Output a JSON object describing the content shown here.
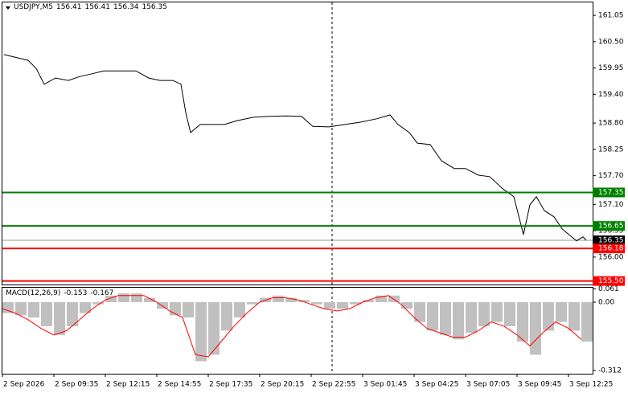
{
  "chart_data": [
    {
      "type": "line",
      "title": "USDJPY,M5",
      "ohlc": [
        156.41,
        156.41,
        156.34,
        156.35
      ],
      "xlim": [
        0,
        367
      ],
      "ylim": [
        155.41,
        161.32
      ],
      "yticks": [
        161.05,
        {
          "value": 160.5,
          "label": "160.50"
        },
        159.95,
        {
          "value": 159.4,
          "label": "159.40"
        },
        {
          "value": 158.8,
          "label": "158.80"
        },
        158.25,
        {
          "value": 157.7,
          "label": "157.70"
        },
        {
          "value": 157.1,
          "label": "157.10"
        },
        156.55,
        {
          "value": 156,
          "label": "156.00"
        }
      ],
      "series": [
        {
          "color": "#000000",
          "x": [
            1,
            16,
            21,
            26,
            33,
            41,
            48,
            56,
            63,
            73,
            83,
            91,
            98,
            106,
            111,
            114,
            117,
            123,
            131,
            138,
            146,
            156,
            166,
            176,
            186,
            193,
            203,
            213,
            223,
            233,
            241,
            246,
            253,
            258,
            266,
            273,
            281,
            288,
            296,
            303,
            311,
            318,
            324,
            328,
            332,
            337,
            343,
            348,
            353,
            357,
            361,
            363
          ],
          "values": [
            160.23,
            160.11,
            159.94,
            159.61,
            159.74,
            159.69,
            159.77,
            159.83,
            159.89,
            159.89,
            159.89,
            159.74,
            159.69,
            159.69,
            159.61,
            159.02,
            158.6,
            158.77,
            158.77,
            158.77,
            158.85,
            158.92,
            158.94,
            158.95,
            158.94,
            158.73,
            158.72,
            158.77,
            158.82,
            158.89,
            158.97,
            158.77,
            158.6,
            158.38,
            158.35,
            158.01,
            157.85,
            157.85,
            157.71,
            157.68,
            157.43,
            157.26,
            156.47,
            157.09,
            157.26,
            156.97,
            156.84,
            156.59,
            156.45,
            156.34,
            156.42,
            156.35
          ]
        }
      ],
      "levels": [
        {
          "value": 157.35,
          "label": "157.35",
          "color": "#008000"
        },
        {
          "value": 156.65,
          "label": "156.65",
          "color": "#008000"
        },
        {
          "value": 156.35,
          "label": "156.35",
          "color": "#000000"
        },
        {
          "value": 156.18,
          "label": "156.18",
          "color": "#ff0000"
        },
        {
          "value": 155.5,
          "label": "155.50",
          "color": "#ff0000"
        }
      ]
    },
    {
      "type": "macd",
      "title": "MACD(12,26,9)",
      "indicator_values": [
        -0.153,
        -0.167
      ],
      "xlim": [
        0,
        367
      ],
      "ylim": [
        -0.327,
        0.066
      ],
      "yticks": [
        0.061,
        {
          "value": 0,
          "label": "0.00"
        },
        -0.312
      ],
      "xticks": [
        {
          "value": 0,
          "label": "2 Sep 2026"
        },
        {
          "value": 32,
          "label": "2 Sep 09:35"
        },
        {
          "value": 64,
          "label": "2 Sep 12:15"
        },
        {
          "value": 96,
          "label": "2 Sep 14:55"
        },
        {
          "value": 128,
          "label": "2 Sep 17:35"
        },
        {
          "value": 160,
          "label": "2 Sep 20:15"
        },
        {
          "value": 192,
          "label": "2 Sep 22:55"
        },
        {
          "value": 224,
          "label": "3 Sep 01:45"
        },
        {
          "value": 256,
          "label": "3 Sep 04:25"
        },
        {
          "value": 288,
          "label": "3 Sep 07:05"
        },
        {
          "value": 320,
          "label": "3 Sep 09:45"
        },
        {
          "value": 352,
          "label": "3 Sep 12:25"
        }
      ],
      "series": [
        {
          "type": "bar",
          "color": "#c0c0c0",
          "x": [
            0,
            8,
            16,
            24,
            32,
            40,
            48,
            56,
            64,
            72,
            80,
            88,
            96,
            104,
            112,
            120,
            128,
            136,
            144,
            152,
            160,
            168,
            176,
            184,
            192,
            200,
            208,
            216,
            224,
            232,
            240,
            248,
            256,
            264,
            272,
            280,
            288,
            296,
            304,
            312,
            320,
            328,
            336,
            344,
            352,
            360
          ],
          "values": [
            -0.05,
            -0.06,
            -0.07,
            -0.11,
            -0.15,
            -0.11,
            -0.05,
            -0.01,
            0.03,
            0.04,
            0.04,
            0.02,
            -0.03,
            -0.06,
            -0.07,
            -0.27,
            -0.24,
            -0.13,
            -0.07,
            -0.01,
            0.02,
            0.03,
            0.02,
            0.01,
            -0.01,
            -0.03,
            -0.03,
            -0.01,
            0.01,
            0.03,
            0.03,
            -0.03,
            -0.09,
            -0.13,
            -0.15,
            -0.17,
            -0.14,
            -0.11,
            -0.09,
            -0.11,
            -0.18,
            -0.24,
            -0.13,
            -0.09,
            -0.13,
            -0.18
          ]
        },
        {
          "type": "line",
          "color": "#ff0000",
          "x": [
            0,
            8,
            16,
            24,
            32,
            40,
            48,
            56,
            64,
            72,
            80,
            88,
            96,
            104,
            112,
            120,
            128,
            136,
            144,
            152,
            160,
            168,
            176,
            184,
            192,
            200,
            208,
            216,
            224,
            232,
            240,
            248,
            256,
            264,
            272,
            280,
            288,
            296,
            304,
            312,
            320,
            328,
            336,
            344,
            352,
            360
          ],
          "values": [
            -0.03,
            -0.05,
            -0.08,
            -0.12,
            -0.15,
            -0.13,
            -0.08,
            -0.03,
            0.01,
            0.03,
            0.03,
            0.03,
            0,
            -0.04,
            -0.07,
            -0.24,
            -0.25,
            -0.18,
            -0.11,
            -0.05,
            0,
            0.02,
            0.02,
            0.01,
            -0.01,
            -0.03,
            -0.04,
            -0.03,
            0,
            0.02,
            0.03,
            -0.01,
            -0.07,
            -0.12,
            -0.14,
            -0.16,
            -0.16,
            -0.13,
            -0.09,
            -0.11,
            -0.15,
            -0.2,
            -0.14,
            -0.09,
            -0.12,
            -0.17
          ]
        }
      ]
    }
  ]
}
